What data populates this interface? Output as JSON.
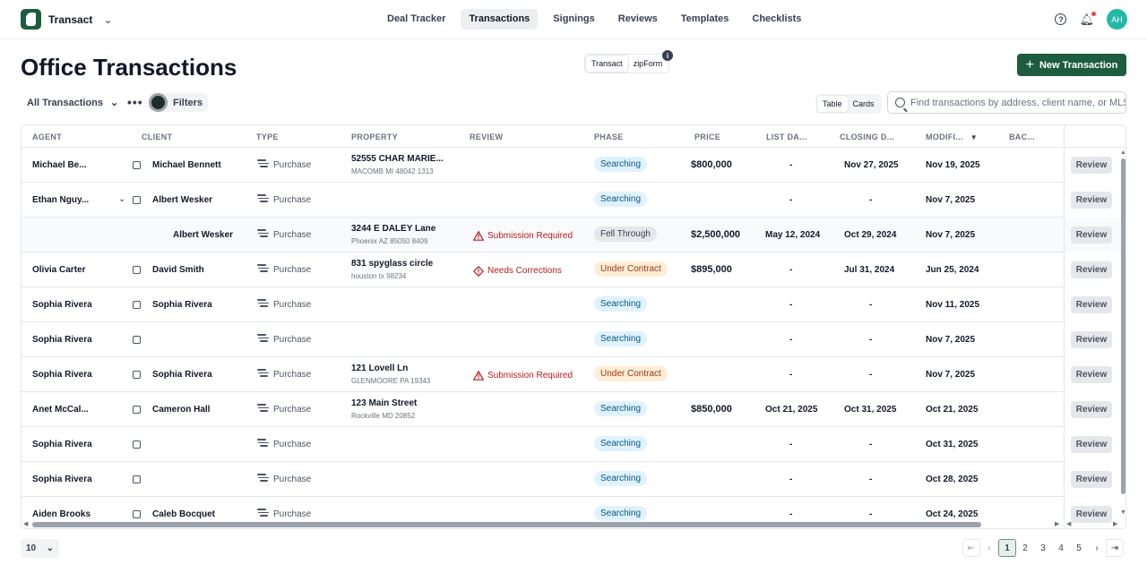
{
  "app": {
    "name": "Transact",
    "nav": [
      "Deal Tracker",
      "Transactions",
      "Signings",
      "Reviews",
      "Templates",
      "Checklists"
    ],
    "active_nav": "Transactions",
    "avatar_initials": "AH",
    "help_icon": "?",
    "accent_color": "#1d5c3f"
  },
  "header": {
    "title": "Office Transactions",
    "source_options": [
      "Transact",
      "zipForm"
    ],
    "info_icon": "i",
    "new_button": "New Transaction"
  },
  "toolbar": {
    "view_selector": "All Transactions",
    "filters_label": "Filters",
    "view_modes": [
      "Table",
      "Cards"
    ],
    "search_placeholder": "Find transactions by address, client name, or MLS #"
  },
  "table": {
    "columns": [
      "AGENT",
      "CLIENT",
      "TYPE",
      "PROPERTY",
      "REVIEW",
      "PHASE",
      "PRICE",
      "LIST DA...",
      "CLOSING D...",
      "MODIFI...",
      "BAC..."
    ],
    "review_button": "Review",
    "rows": [
      {
        "agent": "Michael Be...",
        "client": "Michael Bennett",
        "type": "Purchase",
        "property": "52555 CHAR MARIE...",
        "property_sub": "MACOMB MI 48042 1313",
        "review": "",
        "phase": "Searching",
        "phase_kind": "searching",
        "price": "$800,000",
        "list_date": "-",
        "closing_date": "Nov 27, 2025",
        "modified": "Nov 19, 2025"
      },
      {
        "agent": "Ethan Nguy...",
        "client": "Albert Wesker",
        "type": "Purchase",
        "property": "",
        "property_sub": "",
        "review": "",
        "phase": "Searching",
        "phase_kind": "searching",
        "price": "",
        "list_date": "-",
        "closing_date": "-",
        "modified": "Nov 7, 2025",
        "expandable": true
      },
      {
        "agent": "",
        "client": "Albert Wesker",
        "type": "Purchase",
        "property": "3244 E DALEY Lane",
        "property_sub": "Phoenix AZ 85050 8409",
        "review": "Submission Required",
        "review_kind": "submission",
        "phase": "Fell Through",
        "phase_kind": "fell",
        "price": "$2,500,000",
        "list_date": "May 12, 2024",
        "closing_date": "Oct 29, 2024",
        "modified": "Nov 7, 2025",
        "child": true
      },
      {
        "agent": "Olivia Carter",
        "client": "David Smith",
        "type": "Purchase",
        "property": "831 spyglass circle",
        "property_sub": "houston tx 98234",
        "review": "Needs Corrections",
        "review_kind": "corrections",
        "phase": "Under Contract",
        "phase_kind": "contract",
        "price": "$895,000",
        "list_date": "-",
        "closing_date": "Jul 31, 2024",
        "modified": "Jun 25, 2024"
      },
      {
        "agent": "Sophia Rivera",
        "client": "Sophia Rivera",
        "type": "Purchase",
        "property": "",
        "property_sub": "",
        "review": "",
        "phase": "Searching",
        "phase_kind": "searching",
        "price": "",
        "list_date": "-",
        "closing_date": "-",
        "modified": "Nov 11, 2025"
      },
      {
        "agent": "Sophia Rivera",
        "client": "",
        "type": "Purchase",
        "property": "",
        "property_sub": "",
        "review": "",
        "phase": "Searching",
        "phase_kind": "searching",
        "price": "",
        "list_date": "-",
        "closing_date": "-",
        "modified": "Nov 7, 2025"
      },
      {
        "agent": "Sophia Rivera",
        "client": "Sophia Rivera",
        "type": "Purchase",
        "property": "121 Lovell Ln",
        "property_sub": "GLENMOORE PA 19343",
        "review": "Submission Required",
        "review_kind": "submission",
        "phase": "Under Contract",
        "phase_kind": "contract",
        "price": "",
        "list_date": "-",
        "closing_date": "-",
        "modified": "Nov 7, 2025"
      },
      {
        "agent": "Anet McCal...",
        "client": "Cameron Hall",
        "type": "Purchase",
        "property": "123 Main Street",
        "property_sub": "Rockville MD 20852",
        "review": "",
        "phase": "Searching",
        "phase_kind": "searching",
        "price": "$850,000",
        "list_date": "Oct 21, 2025",
        "closing_date": "Oct 31, 2025",
        "modified": "Oct 21, 2025"
      },
      {
        "agent": "Sophia Rivera",
        "client": "",
        "type": "Purchase",
        "property": "",
        "property_sub": "",
        "review": "",
        "phase": "Searching",
        "phase_kind": "searching",
        "price": "",
        "list_date": "-",
        "closing_date": "-",
        "modified": "Oct 31, 2025"
      },
      {
        "agent": "Sophia Rivera",
        "client": "",
        "type": "Purchase",
        "property": "",
        "property_sub": "",
        "review": "",
        "phase": "Searching",
        "phase_kind": "searching",
        "price": "",
        "list_date": "-",
        "closing_date": "-",
        "modified": "Oct 28, 2025"
      },
      {
        "agent": "Aiden Brooks",
        "client": "Caleb Bocquet",
        "type": "Purchase",
        "property": "",
        "property_sub": "",
        "review": "",
        "phase": "Searching",
        "phase_kind": "searching",
        "price": "",
        "list_date": "-",
        "closing_date": "-",
        "modified": "Oct 24, 2025"
      }
    ]
  },
  "footer": {
    "page_size": "10",
    "pages": [
      "1",
      "2",
      "3",
      "4",
      "5"
    ],
    "current_page": "1"
  }
}
